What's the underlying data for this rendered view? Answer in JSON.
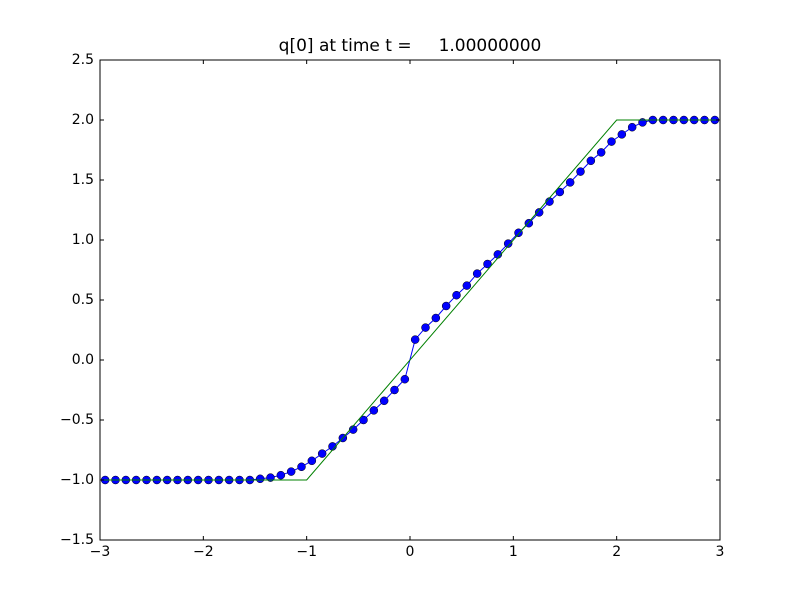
{
  "chart_data": {
    "type": "line",
    "title": "q[0] at time t =     1.00000000",
    "xlim": [
      -3,
      3
    ],
    "ylim": [
      -1.5,
      2.5
    ],
    "xticks": [
      {
        "value": -3,
        "label": "−3"
      },
      {
        "value": -2,
        "label": "−2"
      },
      {
        "value": -1,
        "label": "−1"
      },
      0,
      1,
      2,
      3
    ],
    "yticks": [
      {
        "value": -1.5,
        "label": "−1.5"
      },
      {
        "value": -1,
        "label": "−1.0"
      },
      {
        "value": -0.5,
        "label": "−0.5"
      },
      {
        "value": 0,
        "label": "0.0"
      },
      0.5,
      {
        "value": 1,
        "label": "1.0"
      },
      1.5,
      {
        "value": 2,
        "label": "2.0"
      },
      2.5
    ],
    "grid": false,
    "series": [
      {
        "color": "#0000ff",
        "marker": true,
        "x": [
          -2.95,
          -2.85,
          -2.75,
          -2.65,
          -2.55,
          -2.45,
          -2.35,
          -2.25,
          -2.15,
          -2.05,
          -1.95,
          -1.85,
          -1.75,
          -1.65,
          -1.55,
          -1.45,
          -1.35,
          -1.25,
          -1.15,
          -1.05,
          -0.95,
          -0.85,
          -0.75,
          -0.65,
          -0.55,
          -0.45,
          -0.35,
          -0.25,
          -0.15,
          -0.05,
          0.05,
          0.15,
          0.25,
          0.35,
          0.45,
          0.55,
          0.65,
          0.75,
          0.85,
          0.95,
          1.05,
          1.15,
          1.25,
          1.35,
          1.45,
          1.55,
          1.65,
          1.75,
          1.85,
          1.95,
          2.05,
          2.15,
          2.25,
          2.35,
          2.45,
          2.55,
          2.65,
          2.75,
          2.85,
          2.95
        ],
        "values": [
          -1,
          -1,
          -1,
          -1,
          -1,
          -1,
          -1,
          -1,
          -1,
          -1,
          -1,
          -1,
          -1,
          -1,
          -1,
          -0.99,
          -0.98,
          -0.96,
          -0.93,
          -0.89,
          -0.84,
          -0.78,
          -0.72,
          -0.65,
          -0.58,
          -0.5,
          -0.42,
          -0.34,
          -0.25,
          -0.16,
          0.17,
          0.27,
          0.35,
          0.45,
          0.54,
          0.62,
          0.72,
          0.8,
          0.88,
          0.97,
          1.06,
          1.14,
          1.23,
          1.32,
          1.4,
          1.48,
          1.57,
          1.66,
          1.73,
          1.82,
          1.88,
          1.94,
          1.98,
          2,
          2,
          2,
          2,
          2,
          2,
          2
        ]
      },
      {
        "color": "#008000",
        "marker": false,
        "x": [
          -3,
          -1,
          2,
          3
        ],
        "values": [
          -1,
          -1,
          2,
          2
        ]
      }
    ]
  }
}
